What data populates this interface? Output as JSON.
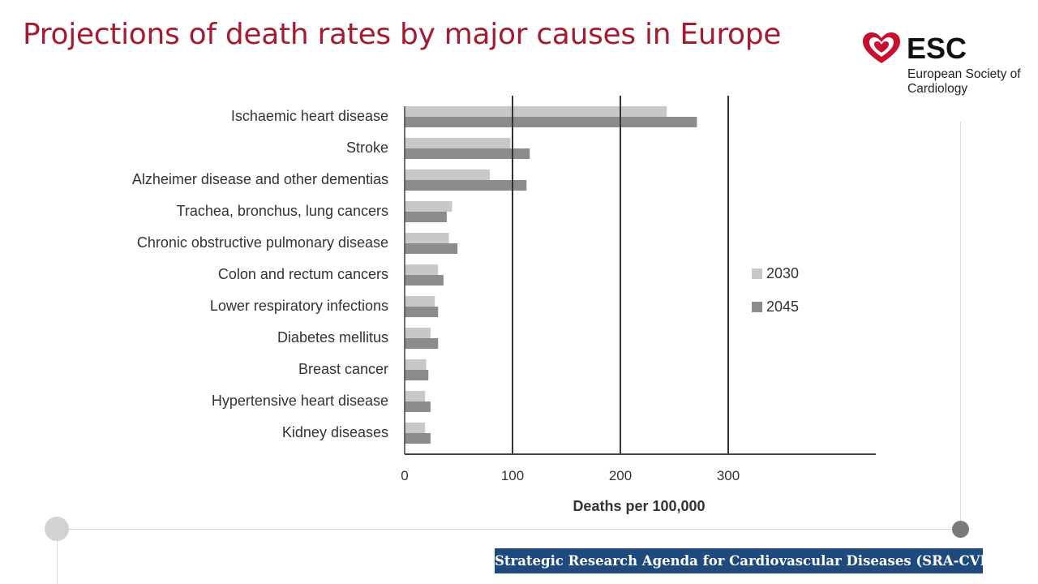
{
  "slide": {
    "title": "Projections of death rates by major causes in Europe",
    "footer": "Strategic Research Agenda for Cardiovascular Diseases (SRA-CVD)"
  },
  "logo": {
    "acronym": "ESC",
    "subtitle": "European Society of Cardiology",
    "icon": "heart-logo-icon",
    "color": "#c8102e"
  },
  "colors": {
    "title": "#a51c30",
    "series_2030": "#c8c8c8",
    "series_2045": "#8c8c8c",
    "footer_bg": "#1f4a7d"
  },
  "chart_data": {
    "type": "bar",
    "orientation": "horizontal",
    "categories": [
      "Ischaemic heart disease",
      "Stroke",
      "Alzheimer disease and other dementias",
      "Trachea, bronchus, lung cancers",
      "Chronic obstructive pulmonary disease",
      "Colon and rectum cancers",
      "Lower respiratory infections",
      "Diabetes mellitus",
      "Breast cancer",
      "Hypertensive heart disease",
      "Kidney diseases"
    ],
    "series": [
      {
        "name": "2030",
        "values": [
          243,
          98,
          79,
          44,
          41,
          31,
          28,
          24,
          20,
          19,
          19
        ]
      },
      {
        "name": "2045",
        "values": [
          271,
          116,
          113,
          39,
          49,
          36,
          31,
          31,
          22,
          24,
          24
        ]
      }
    ],
    "xlabel": "Deaths per 100,000",
    "ylabel": "",
    "xticks": [
      0,
      100,
      200,
      300
    ],
    "xlim": [
      0,
      437
    ],
    "grid": true,
    "legend": "right"
  }
}
